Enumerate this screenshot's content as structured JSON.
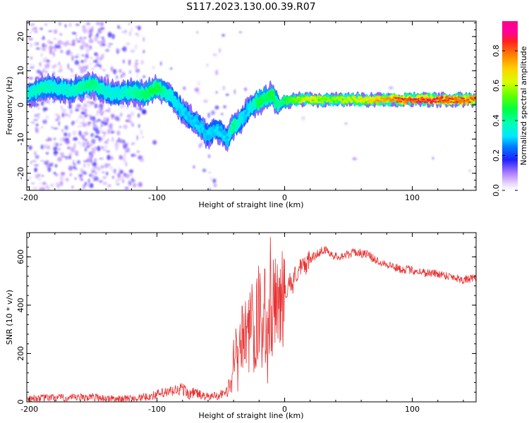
{
  "title": "S117.2023.130.00.39.R07",
  "chart_data": [
    {
      "type": "heatmap",
      "xlabel": "Height of straight line (km)",
      "ylabel": "Frequency (Hz)",
      "xlim": [
        -202,
        150
      ],
      "ylim": [
        -25,
        24.5
      ],
      "x_ticks": [
        -200,
        -100,
        0,
        100
      ],
      "x_tick_labels": [
        "-200",
        "-100",
        "0",
        "100"
      ],
      "y_ticks": [
        -20,
        -10,
        0,
        10,
        20
      ],
      "y_tick_labels": [
        "-20",
        "-10",
        "0",
        "10",
        "20"
      ],
      "ridge": {
        "x": [
          -200,
          -190,
          -180,
          -170,
          -160,
          -150,
          -140,
          -130,
          -120,
          -110,
          -100,
          -90,
          -80,
          -70,
          -60,
          -55,
          -50,
          -45,
          -40,
          -35,
          -30,
          -25,
          -20,
          -15,
          -10,
          -5,
          0,
          10,
          20,
          30,
          40,
          50,
          60,
          70,
          80,
          90,
          100,
          110,
          120,
          130,
          140,
          150
        ],
        "y": [
          3,
          5,
          5,
          4,
          5,
          6,
          4,
          3,
          4,
          3,
          5,
          3,
          -2,
          -5,
          -9,
          -7,
          -8,
          -10,
          -6,
          -5,
          -2,
          0,
          1,
          2,
          3,
          0,
          1,
          1.5,
          1.5,
          1.5,
          1.5,
          1.5,
          1.5,
          1.5,
          1.5,
          1.5,
          1.5,
          1.5,
          1.5,
          1.5,
          1.5,
          1.5
        ],
        "amplitude": [
          0.35,
          0.4,
          0.35,
          0.35,
          0.4,
          0.45,
          0.35,
          0.35,
          0.4,
          0.45,
          0.5,
          0.35,
          0.3,
          0.3,
          0.3,
          0.3,
          0.3,
          0.3,
          0.45,
          0.35,
          0.3,
          0.35,
          0.5,
          0.45,
          0.5,
          0.4,
          0.5,
          0.6,
          0.7,
          0.6,
          0.6,
          0.65,
          0.7,
          0.75,
          0.8,
          0.85,
          0.9,
          0.92,
          0.9,
          0.85,
          0.85,
          0.85
        ]
      },
      "colorbar": {
        "label": "Normalized spectral amplitude",
        "range": [
          0,
          0.97
        ],
        "ticks": [
          0.0,
          0.2,
          0.4,
          0.6,
          0.8
        ],
        "tick_labels": [
          "0.0",
          "0.2",
          "0.4",
          "0.6",
          "0.8"
        ],
        "colormap": "gist_ncar"
      }
    },
    {
      "type": "line",
      "xlabel": "Height of straight line (km)",
      "ylabel": "SNR (10 * v/v)",
      "xlim": [
        -202,
        150
      ],
      "ylim": [
        0,
        700
      ],
      "x_ticks": [
        -200,
        -100,
        0,
        100
      ],
      "x_tick_labels": [
        "-200",
        "-100",
        "0",
        "100"
      ],
      "y_ticks": [
        0,
        200,
        400,
        600
      ],
      "y_tick_labels": [
        "0",
        "200",
        "400",
        "600"
      ],
      "line_color": "#e83232",
      "series": [
        {
          "x": [
            -202,
            -190,
            -180,
            -170,
            -160,
            -150,
            -140,
            -130,
            -120,
            -110,
            -100,
            -90,
            -80,
            -75,
            -70,
            -65,
            -60,
            -55,
            -50,
            -45,
            -42,
            -40,
            -38,
            -36,
            -34,
            -32,
            -30,
            -28,
            -26,
            -24,
            -22,
            -20,
            -18,
            -16,
            -14,
            -12,
            -10,
            -8,
            -6,
            -4,
            -2,
            0,
            2,
            4,
            6,
            8,
            10,
            15,
            20,
            25,
            30,
            35,
            40,
            45,
            50,
            55,
            60,
            65,
            70,
            80,
            90,
            100,
            110,
            120,
            130,
            140,
            150
          ],
          "y": [
            15,
            15,
            18,
            15,
            18,
            20,
            15,
            12,
            15,
            18,
            30,
            40,
            55,
            30,
            40,
            25,
            20,
            25,
            30,
            45,
            80,
            150,
            200,
            180,
            250,
            300,
            350,
            280,
            380,
            200,
            320,
            400,
            250,
            380,
            300,
            420,
            350,
            400,
            380,
            420,
            450,
            430,
            480,
            500,
            480,
            520,
            540,
            560,
            590,
            610,
            630,
            620,
            600,
            605,
            610,
            620,
            615,
            610,
            590,
            570,
            550,
            545,
            535,
            530,
            520,
            505,
            510
          ]
        }
      ]
    }
  ]
}
